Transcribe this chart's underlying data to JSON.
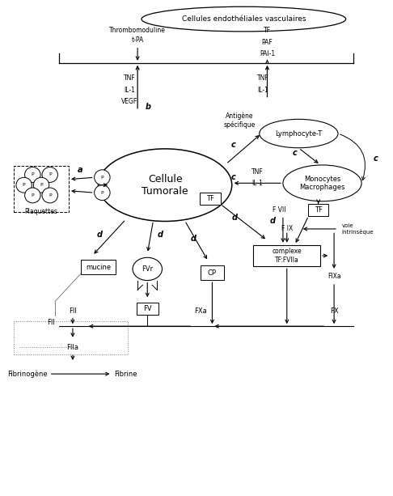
{
  "bg_color": "#ffffff",
  "fig_width": 4.86,
  "fig_height": 6.13,
  "dpi": 100,
  "xlim": [
    0,
    10
  ],
  "ylim": [
    0,
    13
  ]
}
